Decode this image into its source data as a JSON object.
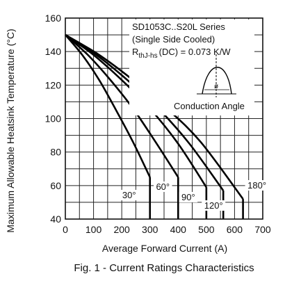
{
  "chart_data": {
    "type": "line",
    "caption": "Fig. 1 - Current Ratings Characteristics",
    "xlabel": "Average Forward Current (A)",
    "ylabel": "Maximum Allowable Heatsink Temperature (°C)",
    "xlim": [
      0,
      700
    ],
    "ylim": [
      40,
      160
    ],
    "xticks": [
      0,
      100,
      200,
      300,
      400,
      500,
      600,
      700
    ],
    "yticks": [
      40,
      60,
      80,
      100,
      120,
      140,
      160
    ],
    "grid": true,
    "annotations": {
      "series_title": "SD1053C..S20L Series",
      "cooling": "(Single Side Cooled)",
      "rth_prefix": "R",
      "rth_sub": "thJ-hs",
      "rth_value": "(DC) = 0.073 K/W",
      "inset_label": "Conduction Angle",
      "inset_symbol": "ø"
    },
    "series": [
      {
        "name": "30°",
        "x": [
          0,
          60,
          120,
          180,
          240,
          300
        ],
        "y": [
          150,
          138,
          123,
          105,
          86,
          65
        ],
        "drop_to": 40
      },
      {
        "name": "60°",
        "x": [
          0,
          80,
          160,
          240,
          320,
          400
        ],
        "y": [
          150,
          138,
          123,
          106,
          86,
          65
        ],
        "drop_to": 40
      },
      {
        "name": "90°",
        "x": [
          0,
          100,
          200,
          300,
          400,
          500
        ],
        "y": [
          150,
          138,
          123,
          106,
          85,
          59
        ],
        "drop_to": 40
      },
      {
        "name": "120°",
        "x": [
          0,
          110,
          220,
          330,
          440,
          560
        ],
        "y": [
          150,
          138,
          123,
          106,
          85,
          57
        ],
        "drop_to": 40
      },
      {
        "name": "180°",
        "x": [
          0,
          120,
          240,
          360,
          480,
          630
        ],
        "y": [
          150,
          138,
          123,
          106,
          86,
          52
        ],
        "drop_to": 40
      }
    ]
  }
}
